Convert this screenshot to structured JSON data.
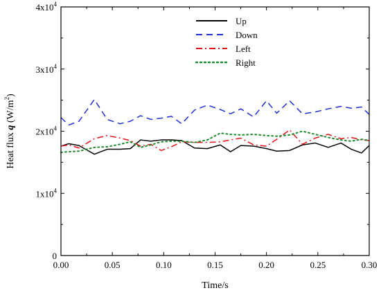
{
  "chart_data": {
    "type": "line",
    "title": "",
    "xlabel": "Time/s",
    "ylabel": {
      "prefix": "Heat flux ",
      "symbol": "q",
      "unit_open": " (W/m",
      "unit_sup": "2",
      "unit_close": ")"
    },
    "xlim": [
      0,
      0.3
    ],
    "ylim": [
      0,
      40000
    ],
    "x_ticks": [
      {
        "value": 0,
        "label": "0.00"
      },
      {
        "value": 0.05,
        "label": "0.05"
      },
      {
        "value": 0.1,
        "label": "0.10"
      },
      {
        "value": 0.15,
        "label": "0.15"
      },
      {
        "value": 0.2,
        "label": "0.20"
      },
      {
        "value": 0.25,
        "label": "0.25"
      },
      {
        "value": 0.3,
        "label": "0.30"
      }
    ],
    "y_ticks": [
      {
        "value": 0,
        "mantissa": "0",
        "exp": ""
      },
      {
        "value": 10000,
        "mantissa": "1x10",
        "exp": "4"
      },
      {
        "value": 20000,
        "mantissa": "2x10",
        "exp": "4"
      },
      {
        "value": 30000,
        "mantissa": "3x10",
        "exp": "4"
      },
      {
        "value": 40000,
        "mantissa": "4x10",
        "exp": "4"
      }
    ],
    "grid": false,
    "legend_position": "top-center",
    "x": [
      0,
      0.0075,
      0.0175,
      0.0325,
      0.045,
      0.0575,
      0.0675,
      0.0775,
      0.0875,
      0.0975,
      0.1075,
      0.1175,
      0.13,
      0.1425,
      0.155,
      0.165,
      0.175,
      0.1875,
      0.2,
      0.21,
      0.2225,
      0.235,
      0.2475,
      0.26,
      0.2725,
      0.2825,
      0.2925,
      0.3
    ],
    "series": [
      {
        "name": "Up",
        "color": "#000000",
        "dash": "solid",
        "values": [
          17600,
          18000,
          17700,
          16300,
          17100,
          17100,
          17200,
          18600,
          18400,
          18600,
          18600,
          18500,
          17300,
          17200,
          17800,
          16700,
          17700,
          17600,
          17200,
          16800,
          16900,
          17800,
          18100,
          17400,
          18100,
          17100,
          16500,
          17700
        ]
      },
      {
        "name": "Down",
        "color": "#1f2fd6",
        "dash": "dashed",
        "values": [
          22200,
          21000,
          21600,
          25100,
          21900,
          21200,
          21600,
          22500,
          21900,
          22100,
          22400,
          21200,
          23400,
          24200,
          23500,
          22800,
          23600,
          22300,
          24900,
          22900,
          24900,
          22800,
          23100,
          23600,
          24000,
          23700,
          23900,
          22700
        ]
      },
      {
        "name": "Left",
        "color": "#e0141b",
        "dash": "dashdot",
        "values": [
          17600,
          17800,
          17300,
          18800,
          19300,
          18900,
          18500,
          17600,
          17900,
          16900,
          17500,
          18300,
          18200,
          18200,
          18300,
          18600,
          18900,
          17800,
          17600,
          18700,
          20200,
          17900,
          18900,
          19500,
          18800,
          19000,
          18600,
          18500
        ]
      },
      {
        "name": "Right",
        "color": "#1c8a2a",
        "dash": "dotted",
        "values": [
          16600,
          16700,
          16800,
          17400,
          17500,
          17900,
          18300,
          17400,
          17800,
          18300,
          18400,
          18400,
          18200,
          18600,
          19700,
          19500,
          19400,
          19500,
          19300,
          19200,
          19400,
          20000,
          19500,
          19000,
          18600,
          18400,
          18700,
          18500
        ]
      }
    ]
  }
}
